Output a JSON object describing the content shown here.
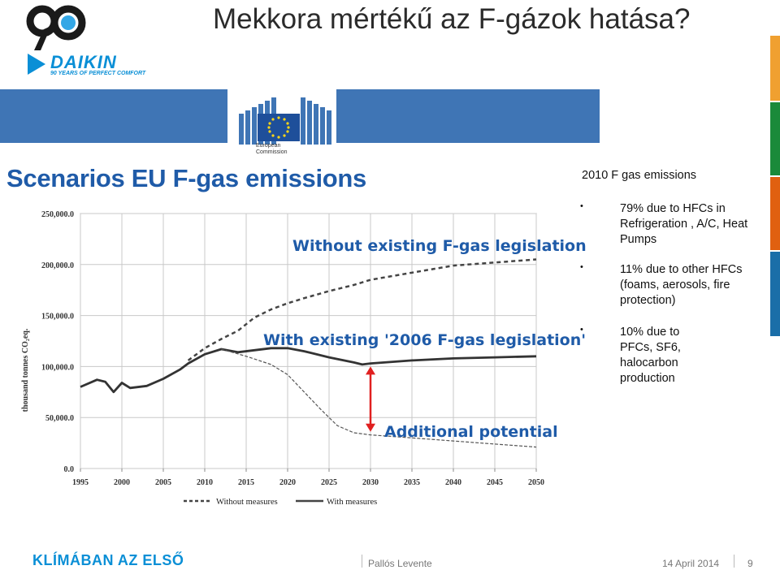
{
  "slide": {
    "title": "Mekkora mértékű az F-gázok hatása?",
    "logo_number": "90",
    "brand": "DAIKIN",
    "brand_tagline": "90 YEARS OF PERFECT COMFORT",
    "ec_label_line1": "European",
    "ec_label_line2": "Commission",
    "footer_brand": "KLÍMÁBAN AZ ELSŐ",
    "footer_author": "Pallós Levente",
    "footer_date": "14 April 2014",
    "page_number": "9",
    "colors": {
      "brand_blue": "#0a8fd6",
      "ec_blue": "#3f75b5",
      "chart_title_blue": "#1f5ba8",
      "arrow_red": "#e02020"
    }
  },
  "textbox": {
    "heading": "2010 F gas emissions",
    "bullets": [
      {
        "marker": "•",
        "text": "79% due to HFCs in Refrigeration , A/C, Heat Pumps"
      },
      {
        "marker": "•",
        "text": "11% due to other HFCs (foams, aerosols, fire protection)"
      },
      {
        "marker": "•",
        "text": "10% due to PFCs, SF6, halocarbon production"
      }
    ]
  },
  "chart_data": {
    "type": "line",
    "title": "Scenarios EU F-gas emissions",
    "xlabel": "",
    "ylabel": "thousand tonnes CO₂eq.",
    "xlim": [
      1995,
      2050
    ],
    "ylim": [
      0,
      250000
    ],
    "x_ticks": [
      "1995",
      "2000",
      "2005",
      "2010",
      "2015",
      "2020",
      "2025",
      "2030",
      "2035",
      "2040",
      "2045",
      "2050"
    ],
    "y_ticks": [
      "0.0",
      "50,000.0",
      "100,000.0",
      "150,000.0",
      "200,000.0",
      "250,000.0"
    ],
    "y_tick_values": [
      0,
      50000,
      100000,
      150000,
      200000,
      250000
    ],
    "grid": true,
    "annotations": [
      "Without existing F-gas legislation",
      "With existing '2006 F-gas legislation'",
      "Additional potential"
    ],
    "series": [
      {
        "name": "Without measures",
        "style": "dashed",
        "x": [
          2008,
          2010,
          2012,
          2014,
          2016,
          2018,
          2020,
          2022,
          2025,
          2028,
          2030,
          2035,
          2040,
          2045,
          2050
        ],
        "y": [
          106000,
          118000,
          127000,
          135000,
          148000,
          156000,
          162000,
          167000,
          174000,
          180000,
          185000,
          192000,
          199000,
          202000,
          205000
        ]
      },
      {
        "name": "With measures",
        "style": "solid",
        "x": [
          1995,
          1997,
          1998,
          1999,
          2000,
          2001,
          2003,
          2005,
          2007,
          2008,
          2010,
          2012,
          2014,
          2016,
          2018,
          2020,
          2022,
          2025,
          2028,
          2029,
          2030,
          2035,
          2040,
          2045,
          2050
        ],
        "y": [
          80000,
          87000,
          85000,
          75000,
          84000,
          79000,
          81000,
          88000,
          97000,
          103000,
          112000,
          117000,
          114000,
          116000,
          118000,
          118000,
          115000,
          109000,
          104000,
          102000,
          103000,
          106000,
          108000,
          109000,
          110000
        ]
      },
      {
        "name": "Additional potential",
        "style": "dashed-thin",
        "x": [
          2012,
          2015,
          2018,
          2020,
          2022,
          2024,
          2026,
          2028,
          2030,
          2035,
          2040,
          2045,
          2050
        ],
        "y": [
          117000,
          110000,
          102000,
          92000,
          75000,
          58000,
          42000,
          35000,
          33000,
          30000,
          27000,
          24000,
          21000
        ]
      }
    ],
    "legend": [
      "Without measures",
      "With measures"
    ],
    "legend_position": "bottom",
    "arrow": {
      "x": 2030,
      "y_from": 100000,
      "y_to": 36000
    }
  }
}
